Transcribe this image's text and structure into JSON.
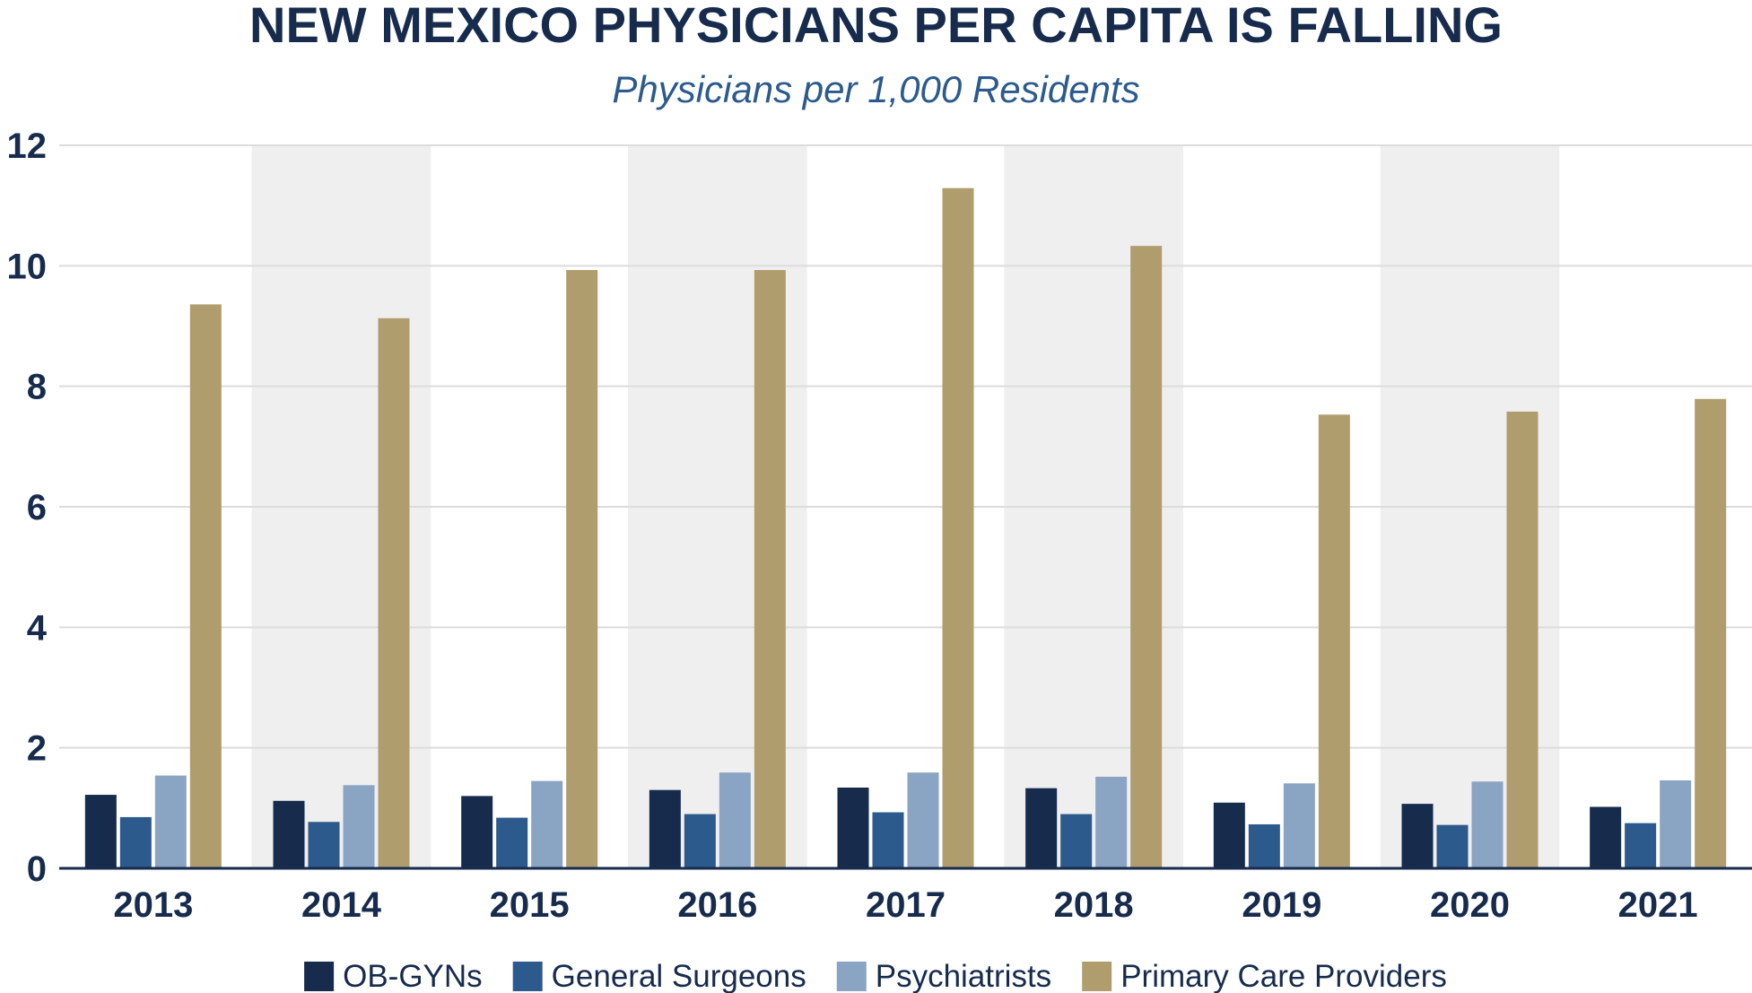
{
  "chart_data": {
    "type": "bar",
    "title": "NEW MEXICO PHYSICIANS PER CAPITA IS FALLING",
    "subtitle": "Physicians per 1,000 Residents",
    "xlabel": "",
    "ylabel": "",
    "ylim": [
      0,
      12
    ],
    "yticks": [
      0,
      2,
      4,
      6,
      8,
      10,
      12
    ],
    "grid": true,
    "legend_position": "bottom",
    "categories": [
      "2013",
      "2014",
      "2015",
      "2016",
      "2017",
      "2018",
      "2019",
      "2020",
      "2021"
    ],
    "series": [
      {
        "name": "OB-GYNs",
        "color": "#172b4d",
        "values": [
          1.22,
          1.12,
          1.2,
          1.3,
          1.34,
          1.33,
          1.09,
          1.07,
          1.02
        ]
      },
      {
        "name": "General Surgeons",
        "color": "#2c5a8c",
        "values": [
          0.85,
          0.77,
          0.84,
          0.9,
          0.93,
          0.9,
          0.73,
          0.72,
          0.75
        ]
      },
      {
        "name": "Psychiatrists",
        "color": "#8aa4c4",
        "values": [
          1.54,
          1.38,
          1.45,
          1.59,
          1.59,
          1.52,
          1.41,
          1.44,
          1.46
        ]
      },
      {
        "name": "Primary Care Providers",
        "color": "#b09d6e",
        "values": [
          9.36,
          9.13,
          9.93,
          9.93,
          11.29,
          10.33,
          7.53,
          7.58,
          7.79
        ]
      }
    ]
  }
}
